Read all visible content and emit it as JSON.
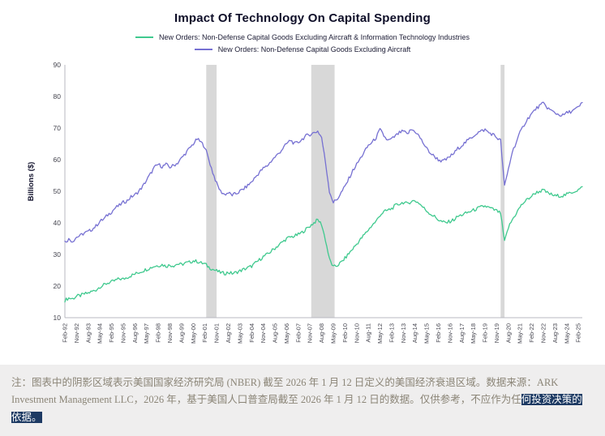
{
  "chart": {
    "title": "Impact Of Technology On Capital Spending"
  },
  "chart_data": {
    "type": "line",
    "title": "Impact Of Technology On Capital Spending",
    "xlabel": "",
    "ylabel": "Billions ($)",
    "ylim": [
      10,
      90
    ],
    "y_ticks": [
      10,
      20,
      30,
      40,
      50,
      60,
      70,
      80,
      90
    ],
    "grid": false,
    "legend_position": "top-center",
    "x_start": "1992-02",
    "x_step_months": 3,
    "x_tick_step_months": 9,
    "x_tick_labels": [
      "Feb-92",
      "Nov-92",
      "Aug-93",
      "May-94",
      "Feb-95",
      "Nov-95",
      "Aug-96",
      "May-97",
      "Feb-98",
      "Nov-98",
      "Aug-99",
      "May-00",
      "Feb-01",
      "Nov-01",
      "Aug-02",
      "May-03",
      "Feb-04",
      "Nov-04",
      "Aug-05",
      "May-06",
      "Feb-07",
      "Nov-07",
      "Aug-08",
      "May-09",
      "Feb-10",
      "Nov-10",
      "Aug-11",
      "May-12",
      "Feb-13",
      "Nov-13",
      "Aug-14",
      "May-15",
      "Feb-16",
      "Nov-16",
      "Aug-17",
      "May-18",
      "Feb-19",
      "Nov-19",
      "Aug-20",
      "May-21",
      "Feb-22",
      "Nov-22",
      "Aug-23",
      "May-24",
      "Feb-25"
    ],
    "recession_bands": [
      {
        "from": "2001-03",
        "to": "2001-11"
      },
      {
        "from": "2007-12",
        "to": "2009-06"
      },
      {
        "from": "2020-02",
        "to": "2020-05"
      }
    ],
    "band_color": "#d8d8d8",
    "series": [
      {
        "name": "New Orders: Non-Defense Capital Goods Excluding Aircraft & Information Technology Industries",
        "color": "#3fc98e",
        "values": [
          15.5,
          16.2,
          16.0,
          16.8,
          17.0,
          17.5,
          17.8,
          18.3,
          18.8,
          19.8,
          20.3,
          21.0,
          21.3,
          21.8,
          22.3,
          22.2,
          22.8,
          23.3,
          23.8,
          24.3,
          24.8,
          25.3,
          25.8,
          26.3,
          26.5,
          26.8,
          26.3,
          26.6,
          26.5,
          27.0,
          26.8,
          27.3,
          27.5,
          28.0,
          27.8,
          27.3,
          27.0,
          26.0,
          25.3,
          24.8,
          24.3,
          24.0,
          24.3,
          24.0,
          24.3,
          24.8,
          25.3,
          25.8,
          26.3,
          27.3,
          28.3,
          29.3,
          30.0,
          31.0,
          32.0,
          33.0,
          34.0,
          35.0,
          35.5,
          35.8,
          36.3,
          37.0,
          38.0,
          39.0,
          40.0,
          41.0,
          39.5,
          34.5,
          28.5,
          26.0,
          26.5,
          27.5,
          28.8,
          30.3,
          31.8,
          33.3,
          34.8,
          36.3,
          37.8,
          39.3,
          40.5,
          42.5,
          43.5,
          44.0,
          44.5,
          45.5,
          46.0,
          46.5,
          46.0,
          46.8,
          47.0,
          46.3,
          45.0,
          43.8,
          42.8,
          42.0,
          41.0,
          40.3,
          40.0,
          40.5,
          41.0,
          42.0,
          42.5,
          43.0,
          43.5,
          44.0,
          44.5,
          45.0,
          45.3,
          44.8,
          44.3,
          43.8,
          43.0,
          34.0,
          38.5,
          41.0,
          43.0,
          45.0,
          46.5,
          47.5,
          48.5,
          49.5,
          50.0,
          50.3,
          49.5,
          49.0,
          48.5,
          48.6,
          48.6,
          49.0,
          49.5,
          50.0,
          50.5,
          51.2
        ]
      },
      {
        "name": "New Orders: Non-Defense Capital Goods Excluding Aircraft",
        "color": "#7670d2",
        "values": [
          34.0,
          34.8,
          34.2,
          35.5,
          36.0,
          36.8,
          37.2,
          38.0,
          39.0,
          40.5,
          41.2,
          42.5,
          43.5,
          44.8,
          45.5,
          46.5,
          47.0,
          48.2,
          48.8,
          50.0,
          51.5,
          53.5,
          55.5,
          57.5,
          58.5,
          57.8,
          58.5,
          57.6,
          58.2,
          59.0,
          60.5,
          62.0,
          63.5,
          65.0,
          66.5,
          65.5,
          64.0,
          60.0,
          56.0,
          52.5,
          50.0,
          49.0,
          49.5,
          48.8,
          49.2,
          50.0,
          50.8,
          51.8,
          53.0,
          54.5,
          56.0,
          57.2,
          58.0,
          59.5,
          60.8,
          62.0,
          63.5,
          65.0,
          66.2,
          65.0,
          65.5,
          66.5,
          67.5,
          68.0,
          68.5,
          69.0,
          67.0,
          59.0,
          50.0,
          46.5,
          47.5,
          49.5,
          51.5,
          54.0,
          56.5,
          58.5,
          60.5,
          62.5,
          64.5,
          65.5,
          67.0,
          69.5,
          67.5,
          66.0,
          66.5,
          67.5,
          68.5,
          69.0,
          68.0,
          69.5,
          69.0,
          67.5,
          65.5,
          63.5,
          62.0,
          61.0,
          60.0,
          59.5,
          60.0,
          61.0,
          62.0,
          63.5,
          64.5,
          65.5,
          66.5,
          67.5,
          68.5,
          69.0,
          69.5,
          68.5,
          68.0,
          67.0,
          66.0,
          51.5,
          57.0,
          62.5,
          65.5,
          68.5,
          71.0,
          73.0,
          74.5,
          76.0,
          77.0,
          77.8,
          76.5,
          75.5,
          74.8,
          74.2,
          74.0,
          74.8,
          75.2,
          75.8,
          76.5,
          78.0
        ]
      }
    ]
  },
  "footnote": {
    "text": "注：图表中的阴影区域表示美国国家经济研究局 (NBER) 截至 2026 年 1 月 12 日定义的美国经济衰退区域。数据来源：ARK Investment Management LLC，2026 年，基于美国人口普查局截至 2026 年 1 月 12 日的数据。仅供参考，不应作为任",
    "selected_text": "何投资决策的依据。"
  }
}
